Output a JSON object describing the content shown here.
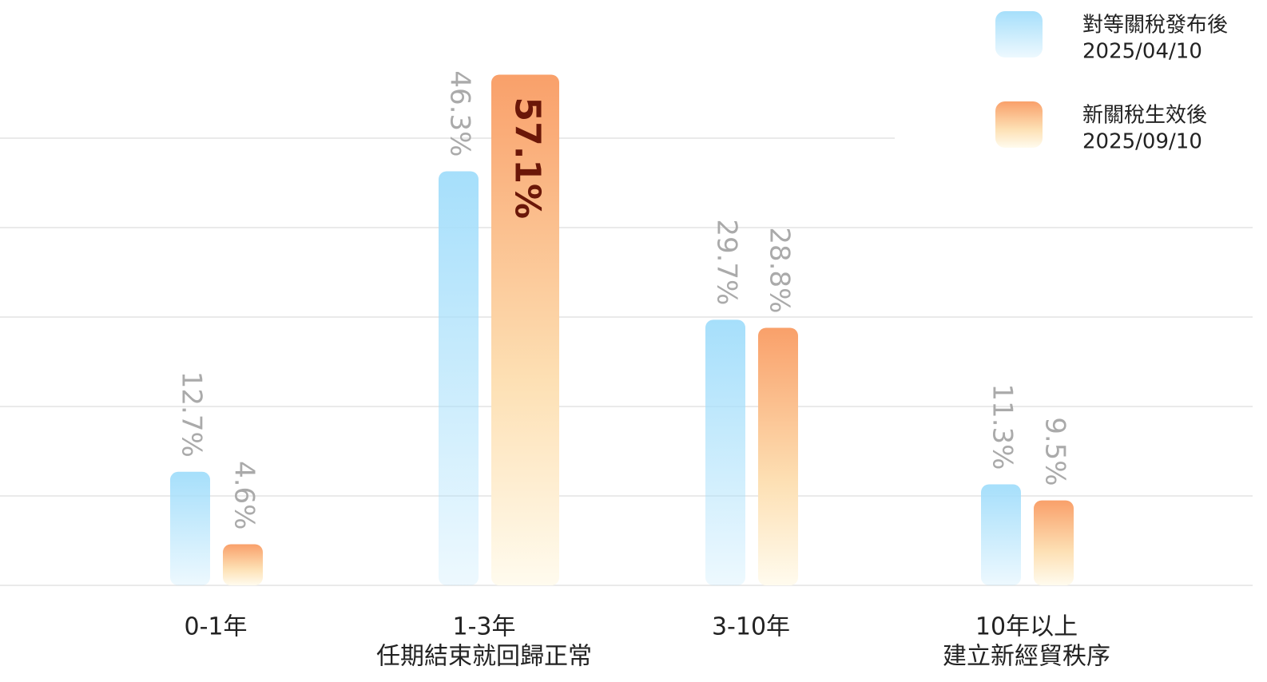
{
  "chart_data": {
    "type": "bar",
    "categories": [
      "0-1年",
      "1-3年",
      "3-10年",
      "10年以上"
    ],
    "category_subtitles": [
      null,
      "任期結束就回歸正常",
      null,
      "建立新經貿秩序"
    ],
    "series": [
      {
        "name": "對等關稅發布後",
        "date": "2025/04/10",
        "color": "#a6dffb",
        "values": [
          12.7,
          46.3,
          29.7,
          11.3
        ],
        "value_labels": [
          "12.7%",
          "46.3%",
          "29.7%",
          "11.3%"
        ]
      },
      {
        "name": "新關稅生效後",
        "date": "2025/09/10",
        "color": "#f9a06a",
        "values": [
          4.6,
          57.1,
          28.8,
          9.5
        ],
        "value_labels": [
          "4.6%",
          "57.1%",
          "28.8%",
          "9.5%"
        ]
      }
    ],
    "highlight": {
      "series": 1,
      "index": 1
    },
    "ylim": [
      0,
      65
    ],
    "yticks": [
      0,
      10,
      20,
      30,
      40,
      50
    ],
    "grid": true,
    "legend": "top-right"
  }
}
